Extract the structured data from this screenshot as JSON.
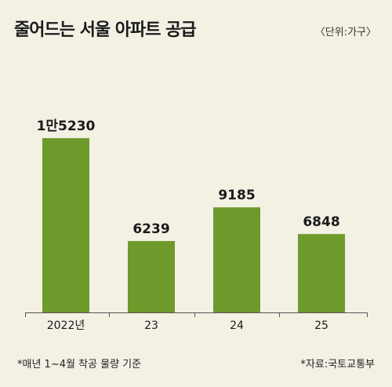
{
  "header": {
    "title": "줄어드는 서울 아파트 공급",
    "unit": "〈단위:가구〉"
  },
  "footer": {
    "note_left": "*매년 1~4월 착공 물량 기준",
    "source": "*자료:국토교통부"
  },
  "colors": {
    "bar": "#6e9a2c",
    "background": "#f3f0e4",
    "axis": "#555555"
  },
  "chart_data": {
    "type": "bar",
    "title": "줄어드는 서울 아파트 공급",
    "xlabel": "",
    "ylabel": "",
    "categories": [
      "2022년",
      "23",
      "24",
      "25"
    ],
    "values": [
      15230,
      6239,
      9185,
      6848
    ],
    "data_labels": [
      "1만5230",
      "6239",
      "9185",
      "6848"
    ],
    "ylim": [
      0,
      15230
    ],
    "grid": false
  }
}
